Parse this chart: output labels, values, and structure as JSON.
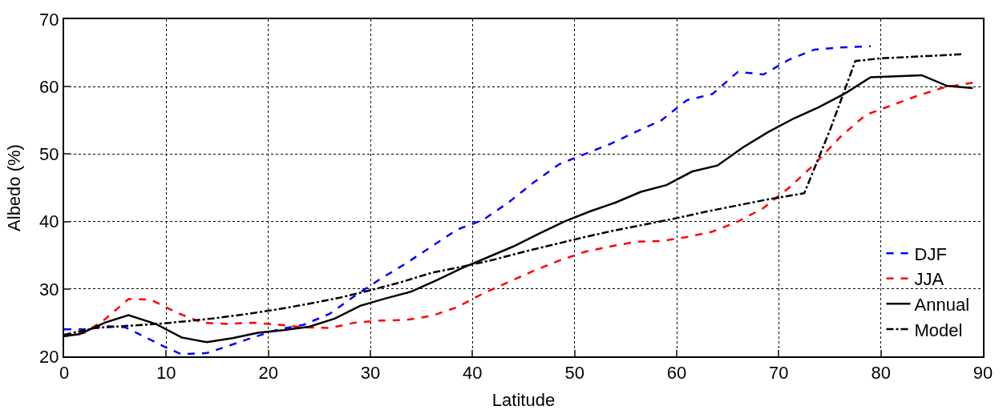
{
  "chart_data": {
    "type": "line",
    "xlabel": "Latitude",
    "ylabel": "Albedo (%)",
    "xlim": [
      0,
      90
    ],
    "xticks": [
      0,
      10,
      20,
      30,
      40,
      50,
      60,
      70,
      80,
      90
    ],
    "ylim": [
      20,
      70
    ],
    "yticks": [
      20,
      30,
      40,
      50,
      60,
      70
    ],
    "grid": true,
    "legend": "bottom right",
    "marker": "none",
    "series": [
      {
        "name": "DJF",
        "color": "#0000ff",
        "line_style": "dashed",
        "x": [
          0,
          2,
          4,
          6,
          8,
          10,
          11.5,
          14,
          16,
          18.5,
          21,
          23.5,
          26,
          28.5,
          31,
          33.5,
          36,
          38.5,
          41,
          43.5,
          46,
          48.5,
          51,
          53.5,
          56,
          58.5,
          61,
          63.5,
          66,
          68.5,
          71,
          73.5,
          76,
          79
        ],
        "values": [
          24,
          24,
          24.5,
          24.3,
          22.8,
          21.3,
          20.3,
          20.5,
          21.5,
          22.8,
          24,
          24.7,
          26.3,
          29,
          31.5,
          33.8,
          36.3,
          38.8,
          40.2,
          42.8,
          45.8,
          48.5,
          50,
          51.5,
          53.3,
          55,
          58,
          58.9,
          62.2,
          61.8,
          64,
          65.5,
          65.8,
          66
        ]
      },
      {
        "name": "JJA",
        "color": "#ff0000",
        "line_style": "dashed",
        "x": [
          0,
          2,
          4,
          6.3,
          8.5,
          11,
          13.5,
          16,
          18.5,
          21,
          23.5,
          26,
          28.5,
          31,
          33.5,
          36,
          38.5,
          41,
          43.5,
          46,
          48.5,
          51,
          53.5,
          56,
          58.5,
          61,
          63.5,
          66,
          68.5,
          71,
          73.5,
          76,
          78.5,
          81,
          83.5,
          86,
          89
        ],
        "values": [
          23,
          23.5,
          25.5,
          28.5,
          28.4,
          26.5,
          25,
          24.8,
          25,
          24.7,
          24.3,
          24.2,
          25,
          25.3,
          25.4,
          26,
          27.3,
          29.3,
          31,
          32.7,
          34.2,
          35.5,
          36.3,
          37,
          37.1,
          37.7,
          38.5,
          40,
          42,
          45,
          48.5,
          52.5,
          55.8,
          57.2,
          58.6,
          59.8,
          60.6
        ]
      },
      {
        "name": "Annual",
        "color": "#000000",
        "line_style": "solid",
        "x": [
          0,
          1.5,
          4,
          6.3,
          9,
          11.5,
          14,
          16.5,
          19,
          21.5,
          24,
          26.5,
          29,
          31.5,
          34,
          36.5,
          39,
          41.5,
          44,
          46.5,
          49,
          51.5,
          54,
          56.5,
          59,
          61.5,
          64,
          66.5,
          69,
          71.5,
          74,
          76.5,
          79,
          84,
          86.5,
          89
        ],
        "values": [
          23,
          23.3,
          25,
          26.1,
          24.8,
          22.8,
          22.1,
          22.7,
          23.5,
          23.9,
          24.4,
          25.6,
          27.5,
          28.6,
          29.6,
          31.3,
          33.1,
          34.7,
          36.3,
          38.2,
          40,
          41.5,
          42.8,
          44.4,
          45.4,
          47.4,
          48.3,
          51,
          53.3,
          55.3,
          57,
          59,
          61.4,
          61.7,
          60.1,
          59.8
        ]
      },
      {
        "name": "Model",
        "color": "#000000",
        "line_style": "dashdot",
        "x": [
          0,
          3,
          6,
          9,
          12,
          15,
          18,
          21,
          24,
          27,
          30,
          33,
          36,
          39,
          42,
          45,
          48,
          51,
          54,
          57,
          60,
          63,
          66,
          69,
          72.5,
          75,
          77.5,
          80,
          84,
          88
        ],
        "values": [
          23.2,
          24.2,
          24.5,
          24.8,
          25.2,
          25.7,
          26.3,
          27,
          27.8,
          28.7,
          29.8,
          31,
          32.4,
          33.3,
          34.3,
          35.5,
          36.6,
          37.7,
          38.7,
          39.6,
          40.5,
          41.5,
          42.4,
          43.3,
          44.2,
          53.5,
          63.8,
          64.2,
          64.5,
          64.8
        ]
      }
    ]
  }
}
